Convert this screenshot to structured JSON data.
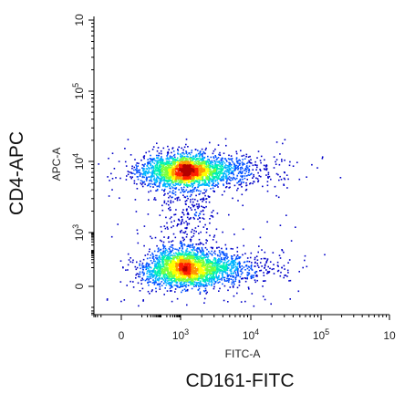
{
  "chart_data": {
    "type": "scatter",
    "title": "",
    "outer_xlabel": "CD161-FITC",
    "outer_ylabel": "CD4-APC",
    "xlabel": "FITC-A",
    "ylabel": "APC-A",
    "x_scale": "biexponential",
    "y_scale": "biexponential",
    "x_ticks": [
      {
        "value": 0,
        "base": "0",
        "exp": ""
      },
      {
        "value": 1000,
        "base": "10",
        "exp": "3"
      },
      {
        "value": 10000,
        "base": "10",
        "exp": "4"
      },
      {
        "value": 100000,
        "base": "10",
        "exp": "5"
      },
      {
        "value": 1000000,
        "base": "10",
        "exp": ""
      }
    ],
    "y_ticks": [
      {
        "value": 0,
        "base": "0",
        "exp": ""
      },
      {
        "value": 1000,
        "base": "10",
        "exp": "3"
      },
      {
        "value": 10000,
        "base": "10",
        "exp": "4"
      },
      {
        "value": 100000,
        "base": "10",
        "exp": "5"
      },
      {
        "value": 1000000,
        "base": "10",
        "exp": ""
      }
    ],
    "populations": [
      {
        "center_x": 800,
        "center_y": 7500,
        "relative_density": "high"
      },
      {
        "center_x": 800,
        "center_y": 10,
        "relative_density": "high"
      }
    ],
    "colormap": [
      "#0000c8",
      "#0050ff",
      "#00b4ff",
      "#00f0b4",
      "#78ff3c",
      "#ffff00",
      "#ff9600",
      "#ff1e00",
      "#b40000"
    ],
    "grid": false
  }
}
